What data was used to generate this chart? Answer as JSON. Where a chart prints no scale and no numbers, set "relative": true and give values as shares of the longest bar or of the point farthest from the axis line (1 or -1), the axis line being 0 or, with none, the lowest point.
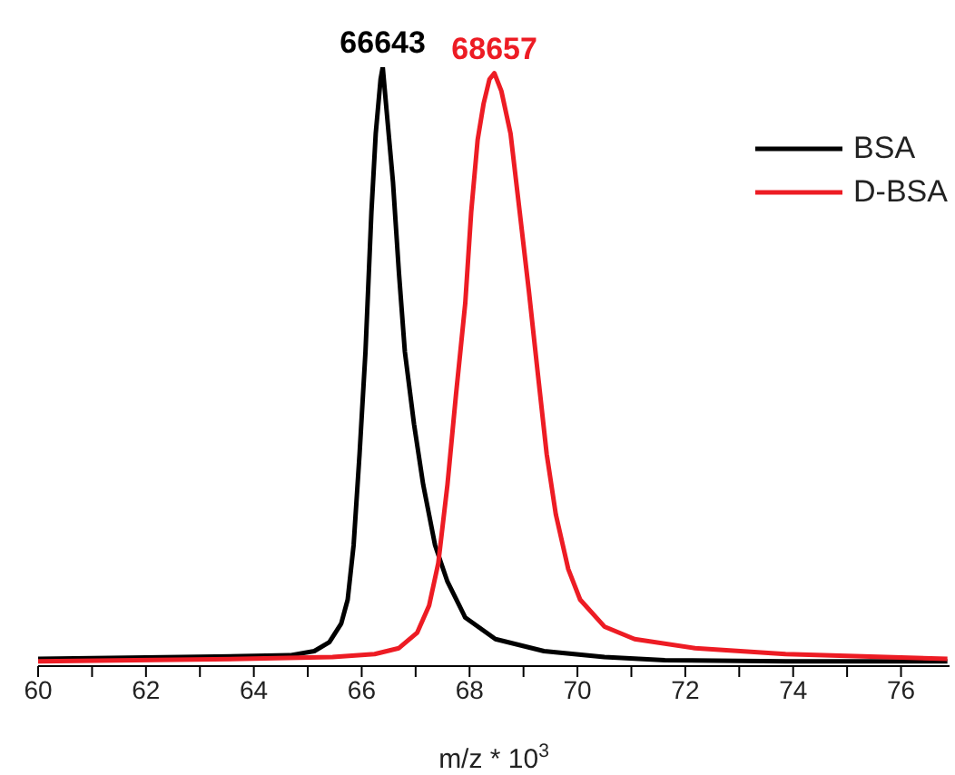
{
  "chart_data": {
    "type": "line",
    "relative": true,
    "xlabel": "m/z * 10$^{3}$",
    "xlim": [
      60,
      76.9
    ],
    "xticks": [
      60,
      {
        "value": 61,
        "label": null
      },
      62,
      {
        "value": 63,
        "label": null
      },
      64,
      {
        "value": 65,
        "label": null
      },
      66,
      {
        "value": 67,
        "label": null
      },
      68,
      {
        "value": 69,
        "label": null
      },
      70,
      {
        "value": 71,
        "label": null
      },
      72,
      {
        "value": 73,
        "label": null
      },
      74,
      {
        "value": 75,
        "label": null
      },
      76
    ],
    "legend": "top right",
    "marker": "none",
    "line_style": "solid",
    "annotations": [
      {
        "text": "66643",
        "x": 66.39,
        "y": 1
      },
      {
        "text": "68657",
        "x": 68.46,
        "y": 0.99
      }
    ],
    "series": [
      {
        "name": "BSA",
        "color": "#000000",
        "x": [
          60,
          62.66,
          64.67,
          65.12,
          65.4,
          65.62,
          65.74,
          65.85,
          65.96,
          66.07,
          66.18,
          66.26,
          66.35,
          66.39,
          66.46,
          66.58,
          66.69,
          66.8,
          66.97,
          67.14,
          67.36,
          67.59,
          67.92,
          68.48,
          69.38,
          70.5,
          71.62,
          73.86,
          76.86
        ],
        "values": [
          0.012,
          0.015,
          0.018,
          0.025,
          0.04,
          0.071,
          0.111,
          0.202,
          0.354,
          0.525,
          0.758,
          0.889,
          0.98,
          1,
          0.929,
          0.808,
          0.657,
          0.525,
          0.404,
          0.303,
          0.202,
          0.141,
          0.081,
          0.045,
          0.025,
          0.015,
          0.01,
          0.008,
          0.008
        ]
      },
      {
        "name": "D-BSA",
        "color": "#ed1c24",
        "x": [
          60,
          63.78,
          65.46,
          66.24,
          66.69,
          67.03,
          67.25,
          67.42,
          67.59,
          67.75,
          67.92,
          68.03,
          68.15,
          68.26,
          68.37,
          68.46,
          68.59,
          68.76,
          68.93,
          69.1,
          69.27,
          69.43,
          69.6,
          69.83,
          70.05,
          70.5,
          71.06,
          72.18,
          73.86,
          76.86
        ],
        "values": [
          0.008,
          0.012,
          0.015,
          0.02,
          0.03,
          0.056,
          0.101,
          0.172,
          0.303,
          0.455,
          0.606,
          0.758,
          0.879,
          0.939,
          0.98,
          0.99,
          0.96,
          0.889,
          0.758,
          0.626,
          0.485,
          0.354,
          0.253,
          0.162,
          0.111,
          0.066,
          0.045,
          0.03,
          0.02,
          0.012
        ]
      }
    ]
  }
}
